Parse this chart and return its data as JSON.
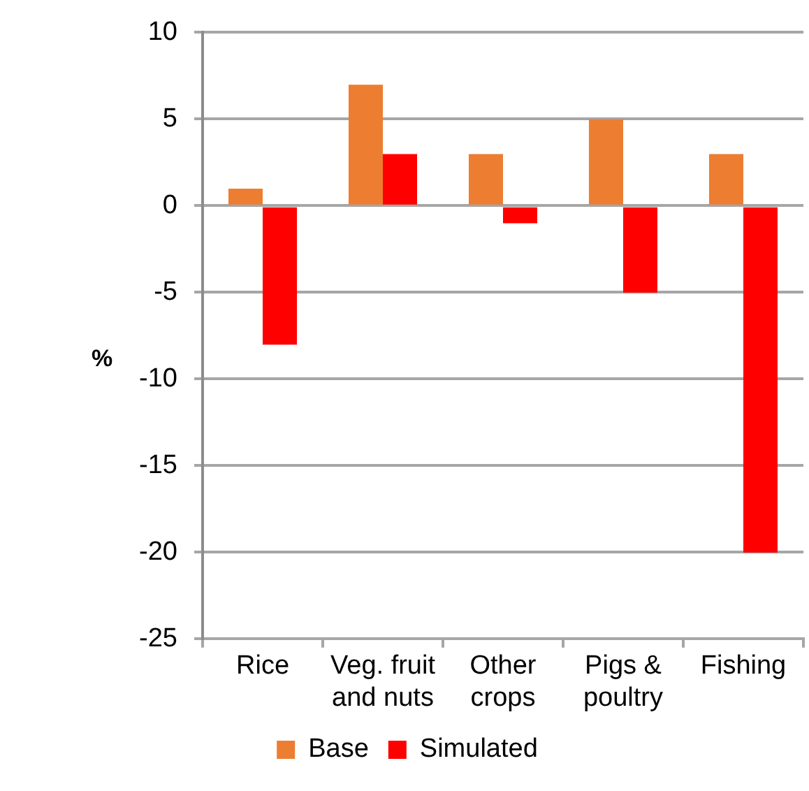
{
  "chart_data": {
    "type": "bar",
    "ylabel": "%",
    "categories": [
      "Rice",
      "Veg. fruit and nuts",
      "Other crops",
      "Pigs & poultry",
      "Fishing"
    ],
    "series": [
      {
        "name": "Base",
        "color": "#ed7d31",
        "values": [
          1,
          7,
          3,
          5,
          3
        ]
      },
      {
        "name": "Simulated",
        "color": "#ff0000",
        "values": [
          -8,
          3,
          -1,
          -5,
          -20
        ]
      }
    ],
    "ylim": [
      -25,
      10
    ],
    "yticks": [
      -25,
      -20,
      -15,
      -10,
      -5,
      0,
      5,
      10
    ],
    "grid": "y",
    "legend": "bottom"
  }
}
